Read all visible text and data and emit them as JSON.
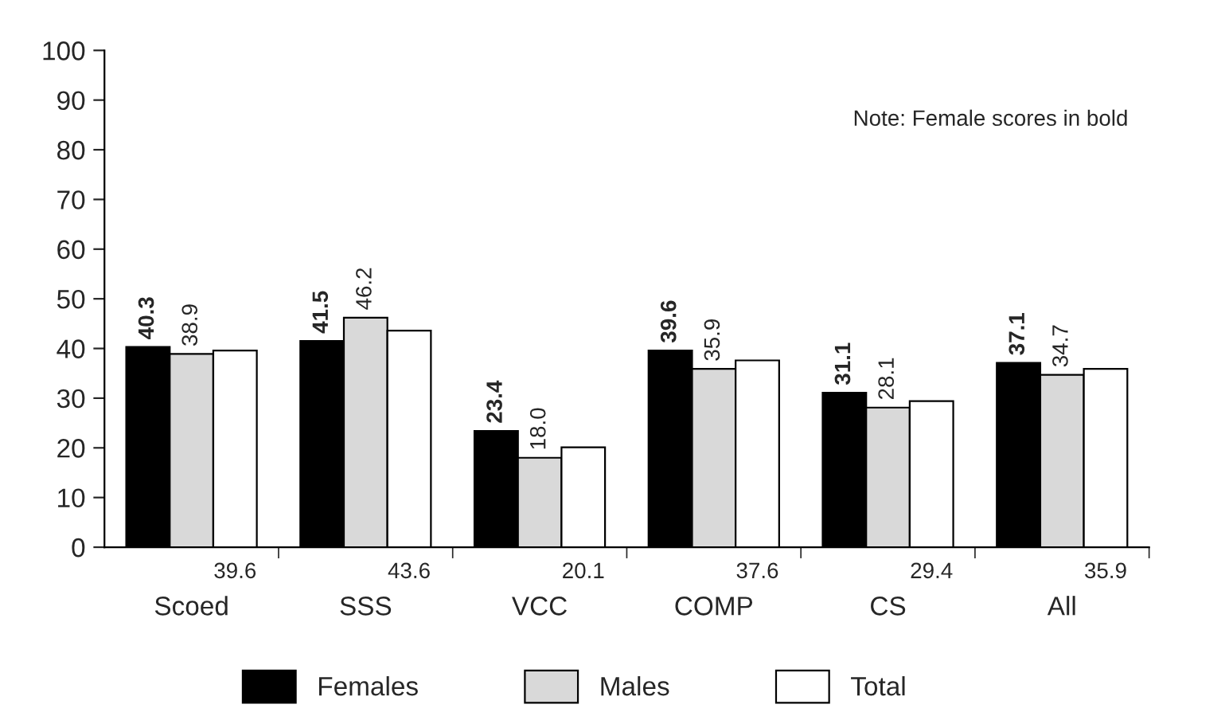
{
  "chart_data": {
    "type": "bar",
    "categories": [
      "Scoed",
      "SSS",
      "VCC",
      "COMP",
      "CS",
      "All"
    ],
    "series": [
      {
        "name": "Females",
        "color": "#000000",
        "values": [
          40.3,
          41.5,
          23.4,
          39.6,
          31.1,
          37.1
        ],
        "value_labels": [
          "40.3",
          "41.5",
          "23.4",
          "39.6",
          "31.1",
          "37.1"
        ]
      },
      {
        "name": "Males",
        "color": "#d9d9d9",
        "values": [
          38.9,
          46.2,
          18.0,
          35.9,
          28.1,
          34.7
        ],
        "value_labels": [
          "38.9",
          "46.2",
          "18.0",
          "35.9",
          "28.1",
          "34.7"
        ]
      },
      {
        "name": "Total",
        "color": "#ffffff",
        "values": [
          39.6,
          43.6,
          20.1,
          37.6,
          29.4,
          35.9
        ],
        "value_labels": [
          "39.6",
          "43.6",
          "20.1",
          "37.6",
          "29.4",
          "35.9"
        ]
      }
    ],
    "ylim": [
      0,
      100
    ],
    "yticks": [
      0,
      10,
      20,
      30,
      40,
      50,
      60,
      70,
      80,
      90,
      100
    ],
    "annotations": [
      "Note: Female scores in bold"
    ],
    "grid": false,
    "legend": "bottom"
  }
}
